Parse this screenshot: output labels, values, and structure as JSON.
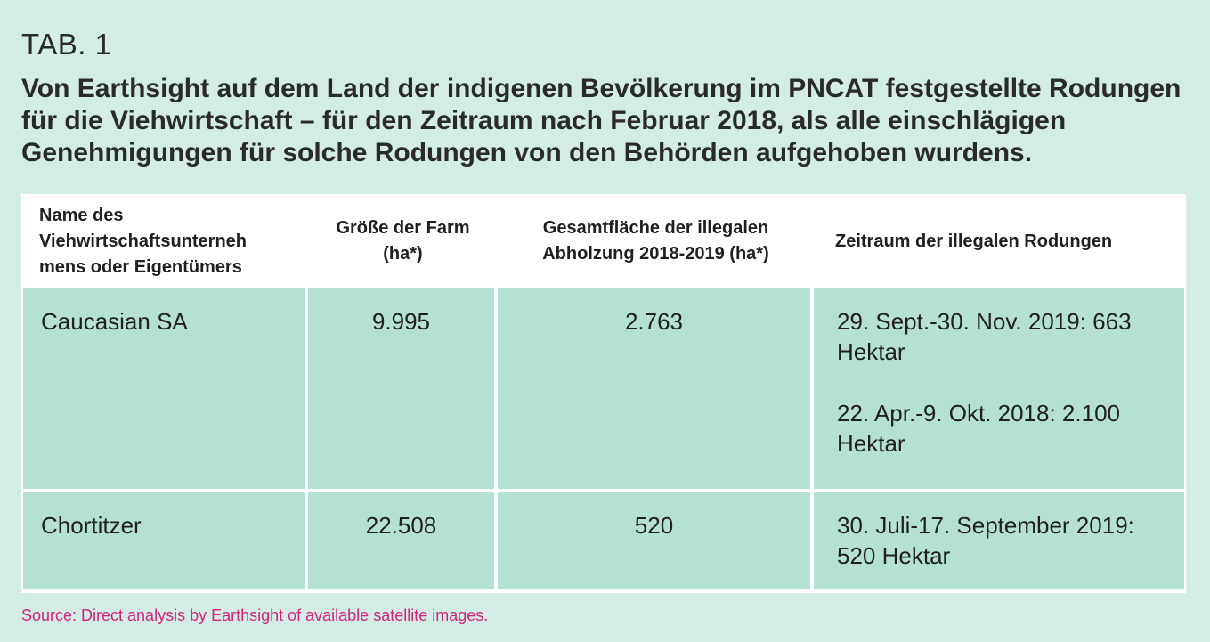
{
  "tab_label": "TAB. 1",
  "title": "Von Earthsight auf dem Land der indigenen Bevölkerung im PNCAT festgestellte Rodungen für die Viehwirtschaft – für den Zeitraum nach Februar 2018, als alle einschlägigen Genehmigungen für solche Rodungen von den Behörden aufgehoben wurdens.",
  "table": {
    "headers": [
      "Name des Viehwirtschaftsunterneh mens oder Eigentümers",
      "Größe der Farm (ha*)",
      "Gesamtfläche der illegalen Abholzung 2018-2019 (ha*)",
      "Zeitraum der illegalen Rodungen"
    ],
    "rows": [
      {
        "name": "Caucasian SA",
        "farm_size": "9.995",
        "illegal_area": "2.763",
        "periods": [
          "29. Sept.-30. Nov. 2019: 663 Hektar",
          "22. Apr.-9. Okt. 2018: 2.100 Hektar"
        ]
      },
      {
        "name": "Chortitzer",
        "farm_size": "22.508",
        "illegal_area": "520",
        "periods": [
          "30. Juli-17. September 2019: 520 Hektar"
        ]
      }
    ]
  },
  "source": "Source: Direct analysis by Earthsight of available satellite images.",
  "colors": {
    "background": "#d3ece6",
    "cell_fill": "#b5e1d5",
    "header_fill": "#ffffff",
    "source_text": "#d4237a"
  }
}
